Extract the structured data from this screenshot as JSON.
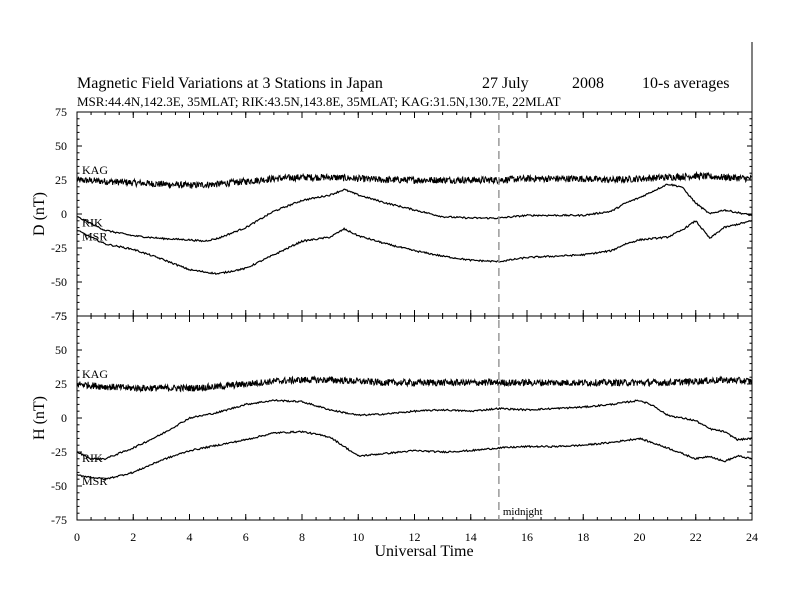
{
  "header": {
    "title": "Magnetic Field Variations at 3 Stations in Japan",
    "date_day": "27 July",
    "date_year": "2008",
    "averaging": "10-s averages",
    "stations_line": "MSR:44.4N,142.3E, 35MLAT;  RIK:43.5N,143.8E, 35MLAT;  KAG:31.5N,130.7E, 22MLAT"
  },
  "chart_data": [
    {
      "type": "line",
      "panel": "D",
      "ylabel": "D (nT)",
      "xlabel": "",
      "ylim": [
        -75,
        75
      ],
      "yticks": [
        "75",
        "50",
        "25",
        "0",
        "-25",
        "-50",
        "-75"
      ],
      "xlim": [
        0,
        24
      ],
      "series": [
        {
          "name": "KAG",
          "noise": 2.5,
          "x": [
            0,
            1,
            2,
            3,
            4,
            5,
            6,
            7,
            8,
            9,
            10,
            11,
            12,
            13,
            14,
            15,
            16,
            17,
            18,
            19,
            20,
            21,
            22,
            23,
            24
          ],
          "values": [
            25,
            24,
            23,
            22,
            21,
            22,
            24,
            26,
            27,
            27,
            26,
            25,
            25,
            25,
            25,
            25,
            26,
            26,
            26,
            25,
            26,
            27,
            28,
            27,
            26
          ]
        },
        {
          "name": "RIK",
          "noise": 0.6,
          "x": [
            0,
            1,
            2,
            3,
            4,
            4.5,
            5,
            6,
            7,
            8,
            9,
            9.5,
            10,
            11,
            12,
            13,
            14,
            15,
            16,
            17,
            18,
            19,
            19.5,
            20,
            21,
            21.5,
            22,
            22.5,
            23,
            24
          ],
          "values": [
            -2,
            -12,
            -16,
            -18,
            -19,
            -20,
            -18,
            -10,
            2,
            10,
            14,
            18,
            14,
            8,
            3,
            -2,
            -3,
            -3,
            -1,
            -1,
            -1,
            2,
            8,
            12,
            22,
            20,
            8,
            0,
            3,
            -1
          ]
        },
        {
          "name": "MSR",
          "noise": 0.6,
          "x": [
            0,
            1,
            2,
            3,
            4,
            5,
            6,
            7,
            8,
            9,
            9.5,
            10,
            11,
            12,
            13,
            14,
            15,
            16,
            17,
            18,
            19,
            19.5,
            20,
            21,
            21.5,
            22,
            22.5,
            23,
            24
          ],
          "values": [
            -12,
            -22,
            -26,
            -33,
            -41,
            -44,
            -40,
            -30,
            -20,
            -17,
            -11,
            -16,
            -22,
            -27,
            -31,
            -34,
            -35,
            -32,
            -31,
            -30,
            -27,
            -22,
            -19,
            -17,
            -12,
            -5,
            -18,
            -10,
            -5
          ]
        }
      ]
    },
    {
      "type": "line",
      "panel": "H",
      "ylabel": "H (nT)",
      "xlabel": "Universal Time",
      "ylim": [
        -75,
        75
      ],
      "yticks": [
        "75",
        "50",
        "25",
        "0",
        "-25",
        "-50",
        "-75"
      ],
      "xlim": [
        0,
        24
      ],
      "xticks": [
        "0",
        "2",
        "4",
        "6",
        "8",
        "10",
        "12",
        "14",
        "16",
        "18",
        "20",
        "22",
        "24"
      ],
      "annotation": {
        "x": 15,
        "label": "midnight"
      },
      "series": [
        {
          "name": "KAG",
          "noise": 2.5,
          "x": [
            0,
            1,
            2,
            3,
            4,
            5,
            6,
            7,
            8,
            9,
            10,
            11,
            12,
            13,
            14,
            15,
            16,
            17,
            18,
            19,
            20,
            21,
            22,
            23,
            24
          ],
          "values": [
            25,
            23,
            22,
            22,
            22,
            23,
            25,
            27,
            28,
            28,
            27,
            26,
            26,
            26,
            26,
            26,
            26,
            26,
            26,
            26,
            26,
            26,
            27,
            28,
            27
          ]
        },
        {
          "name": "RIK",
          "noise": 0.6,
          "x": [
            0,
            0.5,
            1,
            2,
            3,
            4,
            5,
            6,
            7,
            8,
            9,
            10,
            11,
            12,
            13,
            14,
            15,
            16,
            17,
            18,
            19,
            20,
            20.5,
            21,
            22,
            22.5,
            23,
            23.5,
            24
          ],
          "values": [
            -25,
            -30,
            -30,
            -22,
            -12,
            0,
            4,
            10,
            13,
            12,
            6,
            2,
            3,
            5,
            6,
            5,
            7,
            6,
            7,
            8,
            10,
            13,
            9,
            2,
            -2,
            -8,
            -10,
            -16,
            -15
          ]
        },
        {
          "name": "MSR",
          "noise": 0.6,
          "x": [
            0,
            1,
            2,
            3,
            4,
            5,
            6,
            7,
            8,
            9,
            10,
            11,
            12,
            13,
            14,
            15,
            16,
            17,
            18,
            19,
            20,
            21,
            22,
            22.5,
            23,
            23.5,
            24
          ],
          "values": [
            -42,
            -45,
            -40,
            -31,
            -24,
            -20,
            -16,
            -11,
            -10,
            -14,
            -28,
            -26,
            -24,
            -25,
            -24,
            -22,
            -21,
            -21,
            -20,
            -18,
            -15,
            -22,
            -30,
            -28,
            -32,
            -28,
            -30
          ]
        }
      ]
    }
  ]
}
